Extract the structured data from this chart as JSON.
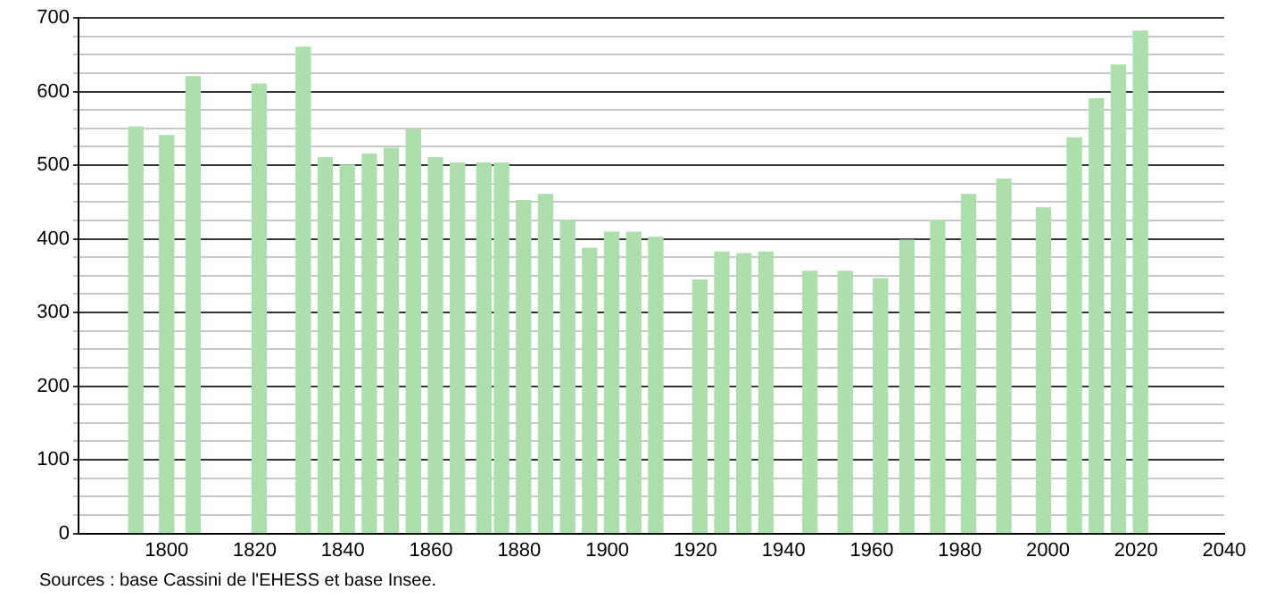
{
  "chart_data": {
    "type": "bar",
    "color": "#addfad",
    "x": [
      1793,
      1800,
      1806,
      1821,
      1831,
      1836,
      1841,
      1846,
      1851,
      1856,
      1861,
      1866,
      1872,
      1876,
      1881,
      1886,
      1891,
      1896,
      1901,
      1906,
      1911,
      1921,
      1926,
      1931,
      1936,
      1946,
      1954,
      1962,
      1968,
      1975,
      1982,
      1990,
      1999,
      2006,
      2011,
      2016,
      2021
    ],
    "values": [
      552,
      540,
      620,
      610,
      660,
      510,
      500,
      515,
      523,
      548,
      510,
      503,
      503,
      503,
      452,
      460,
      425,
      387,
      409,
      409,
      402,
      344,
      382,
      380,
      382,
      356,
      356,
      346,
      398,
      425,
      460,
      481,
      442,
      537,
      590,
      636,
      682
    ],
    "xlim": [
      1780,
      2040
    ],
    "xticks": [
      1800,
      1820,
      1840,
      1860,
      1880,
      1900,
      1920,
      1940,
      1960,
      1980,
      2000,
      2020,
      2040
    ],
    "ylim": [
      0,
      700
    ],
    "yticks": [
      0,
      {
        "value": 25,
        "label": null
      },
      {
        "value": 50,
        "label": null
      },
      {
        "value": 75,
        "label": null
      },
      100,
      {
        "value": 125,
        "label": null
      },
      {
        "value": 150,
        "label": null
      },
      {
        "value": 175,
        "label": null
      },
      200,
      {
        "value": 225,
        "label": null
      },
      {
        "value": 250,
        "label": null
      },
      {
        "value": 275,
        "label": null
      },
      300,
      {
        "value": 325,
        "label": null
      },
      {
        "value": 350,
        "label": null
      },
      {
        "value": 375,
        "label": null
      },
      400,
      {
        "value": 425,
        "label": null
      },
      {
        "value": 450,
        "label": null
      },
      {
        "value": 475,
        "label": null
      },
      500,
      {
        "value": 525,
        "label": null
      },
      {
        "value": 550,
        "label": null
      },
      {
        "value": 575,
        "label": null
      },
      600,
      {
        "value": 625,
        "label": null
      },
      {
        "value": 650,
        "label": null
      },
      {
        "value": 675,
        "label": null
      },
      700
    ],
    "grid": "y",
    "annotations": [
      "Sources : base Cassini de l'EHESS et base Insee."
    ]
  }
}
